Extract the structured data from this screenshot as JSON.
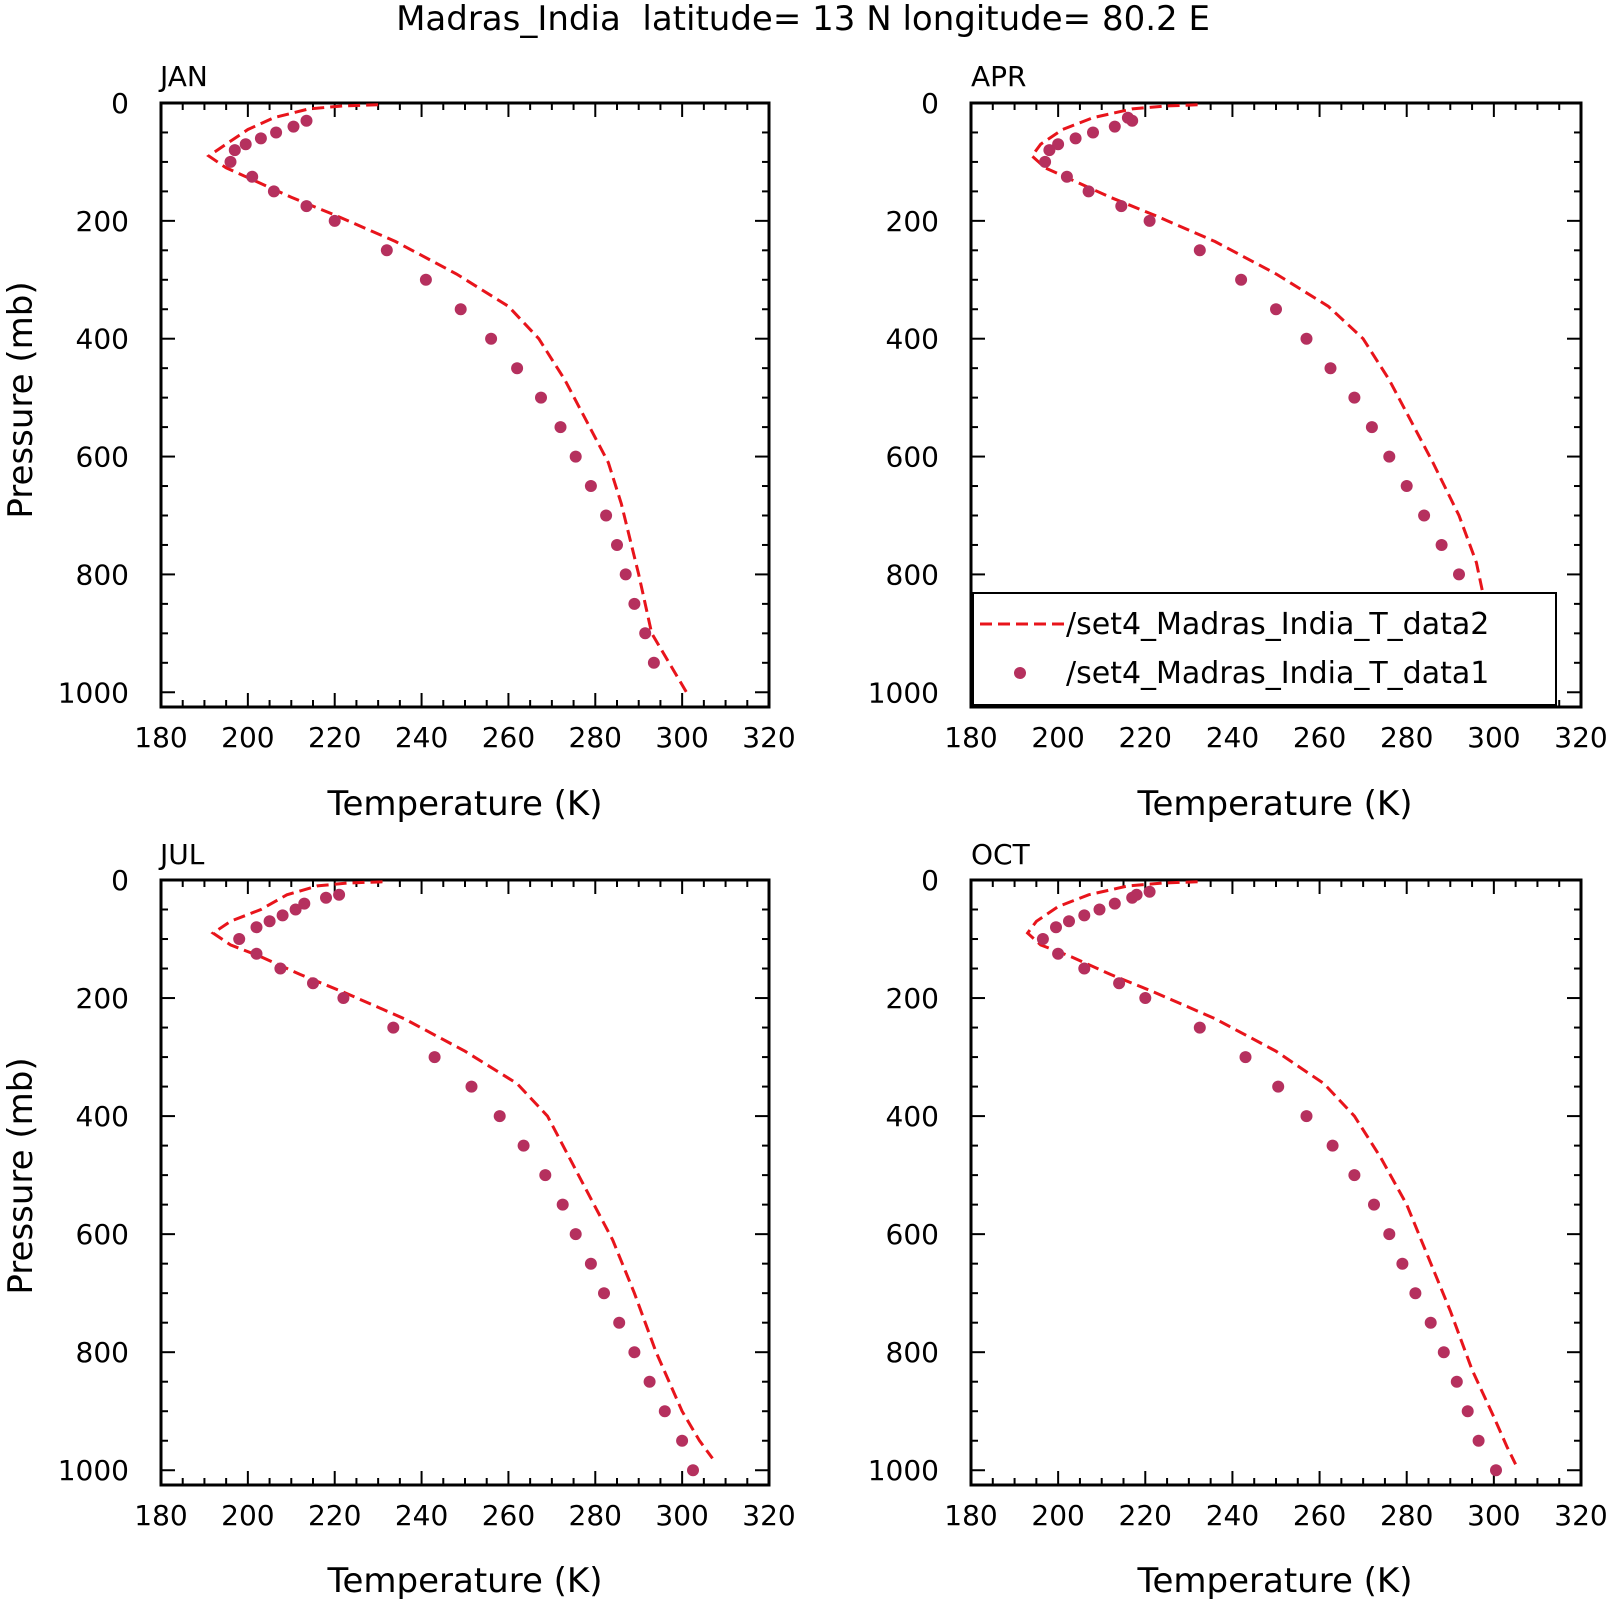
{
  "figure": {
    "title": "Madras_India  latitude= 13 N longitude= 80.2 E"
  },
  "colors": {
    "model_line": "#e8141b",
    "obs_marker": "#b5305e",
    "axes": "#000000"
  },
  "chart_data": [
    {
      "type": "line",
      "panel_label": "JAN",
      "xlabel": "Temperature (K)",
      "ylabel": "Pressure (mb)",
      "xlim": [
        180,
        320
      ],
      "ylim": [
        0,
        1000
      ],
      "y_inverted": true,
      "xticks": [
        180,
        200,
        220,
        240,
        260,
        280,
        300,
        320
      ],
      "yticks": [
        0,
        200,
        400,
        600,
        800,
        1000
      ],
      "grid": false,
      "series": [
        {
          "name": "/set4_Madras_India_T_data2",
          "style": "dashed-line",
          "x": [
            230,
            222,
            214,
            206,
            200,
            195,
            191,
            195,
            201,
            210,
            220,
            234,
            248,
            260,
            267,
            273,
            278,
            283,
            286,
            288,
            290,
            293,
            297,
            301
          ],
          "y": [
            3,
            5,
            10,
            25,
            45,
            70,
            90,
            110,
            130,
            160,
            190,
            235,
            290,
            345,
            400,
            470,
            540,
            610,
            680,
            740,
            800,
            900,
            950,
            1000
          ]
        },
        {
          "name": "/set4_Madras_India_T_data1",
          "style": "marker",
          "x": [
            213.5,
            210.5,
            206.5,
            203,
            199.5,
            197,
            196,
            201,
            206,
            213.5,
            220,
            232,
            241,
            249,
            256,
            262,
            267.5,
            272,
            275.5,
            279,
            282.5,
            285,
            287,
            289,
            291.5,
            293.5
          ],
          "y": [
            30,
            40,
            50,
            60,
            70,
            80,
            100,
            125,
            150,
            175,
            200,
            250,
            300,
            350,
            400,
            450,
            500,
            550,
            600,
            650,
            700,
            750,
            800,
            850,
            900,
            950
          ]
        }
      ]
    },
    {
      "type": "line",
      "panel_label": "APR",
      "xlabel": "Temperature (K)",
      "ylabel": "",
      "xlim": [
        180,
        320
      ],
      "ylim": [
        0,
        1000
      ],
      "y_inverted": true,
      "xticks": [
        180,
        200,
        220,
        240,
        260,
        280,
        300,
        320
      ],
      "yticks": [
        0,
        200,
        400,
        600,
        800,
        1000
      ],
      "grid": false,
      "legend_position": "bottom-right",
      "series": [
        {
          "name": "/set4_Madras_India_T_data2",
          "style": "dashed-line",
          "x": [
            232,
            225,
            217,
            208,
            201,
            196,
            194,
            197,
            203,
            212,
            222,
            236,
            250,
            262,
            270,
            276,
            281,
            286,
            292,
            296,
            298,
            300,
            303,
            305
          ],
          "y": [
            3,
            5,
            10,
            25,
            45,
            70,
            90,
            110,
            130,
            160,
            190,
            235,
            290,
            345,
            400,
            470,
            540,
            610,
            700,
            780,
            850,
            900,
            950,
            1000
          ]
        },
        {
          "name": "/set4_Madras_India_T_data1",
          "style": "marker",
          "x": [
            216,
            217,
            213,
            208,
            204,
            200,
            198,
            197,
            202,
            207,
            214.5,
            221,
            232.5,
            242,
            250,
            257,
            262.5,
            268,
            272,
            276,
            280,
            284,
            288,
            292,
            295.5,
            298,
            299,
            305
          ],
          "y": [
            25,
            30,
            40,
            50,
            60,
            70,
            80,
            100,
            125,
            150,
            175,
            200,
            250,
            300,
            350,
            400,
            450,
            500,
            550,
            600,
            650,
            700,
            750,
            800,
            850,
            900,
            950,
            1000
          ]
        }
      ]
    },
    {
      "type": "line",
      "panel_label": "JUL",
      "xlabel": "Temperature (K)",
      "ylabel": "Pressure (mb)",
      "xlim": [
        180,
        320
      ],
      "ylim": [
        0,
        1000
      ],
      "y_inverted": true,
      "xticks": [
        180,
        200,
        220,
        240,
        260,
        280,
        300,
        320
      ],
      "yticks": [
        0,
        200,
        400,
        600,
        800,
        1000
      ],
      "grid": false,
      "series": [
        {
          "name": "/set4_Madras_India_T_data2",
          "style": "dashed-line",
          "x": [
            231,
            223,
            216,
            209,
            203,
            196,
            192,
            196,
            203,
            212,
            222,
            236,
            250,
            262,
            269,
            274,
            279,
            284,
            289,
            294,
            300,
            304,
            307
          ],
          "y": [
            3,
            5,
            10,
            25,
            50,
            70,
            90,
            110,
            130,
            160,
            190,
            235,
            290,
            345,
            400,
            470,
            540,
            610,
            700,
            800,
            900,
            950,
            980
          ]
        },
        {
          "name": "/set4_Madras_India_T_data1",
          "style": "marker",
          "x": [
            221,
            218,
            213,
            211,
            208,
            205,
            202,
            198,
            202,
            207.5,
            215,
            222,
            233.5,
            243,
            251.5,
            258,
            263.5,
            268.5,
            272.5,
            275.5,
            279,
            282,
            285.5,
            289,
            292.5,
            296,
            300,
            302.5
          ],
          "y": [
            25,
            30,
            40,
            50,
            60,
            70,
            80,
            100,
            125,
            150,
            175,
            200,
            250,
            300,
            350,
            400,
            450,
            500,
            550,
            600,
            650,
            700,
            750,
            800,
            850,
            900,
            950,
            1000
          ]
        }
      ]
    },
    {
      "type": "line",
      "panel_label": "OCT",
      "xlabel": "Temperature (K)",
      "ylabel": "",
      "xlim": [
        180,
        320
      ],
      "ylim": [
        0,
        1000
      ],
      "y_inverted": true,
      "xticks": [
        180,
        200,
        220,
        240,
        260,
        280,
        300,
        320
      ],
      "yticks": [
        0,
        200,
        400,
        600,
        800,
        1000
      ],
      "grid": false,
      "series": [
        {
          "name": "/set4_Madras_India_T_data2",
          "style": "dashed-line",
          "x": [
            232,
            224,
            216,
            207,
            200,
            195,
            193,
            196,
            203,
            212,
            222,
            236,
            250,
            261,
            268,
            274,
            280,
            285,
            290,
            295,
            300,
            303,
            305
          ],
          "y": [
            3,
            5,
            10,
            25,
            45,
            70,
            90,
            110,
            130,
            160,
            190,
            235,
            290,
            345,
            400,
            470,
            550,
            640,
            730,
            830,
            910,
            960,
            990
          ]
        },
        {
          "name": "/set4_Madras_India_T_data1",
          "style": "marker",
          "x": [
            221,
            218,
            217,
            213,
            209.5,
            206,
            202.5,
            199.5,
            196.5,
            200,
            206,
            214,
            220,
            232.5,
            243,
            250.5,
            257,
            263,
            268,
            272.5,
            276,
            279,
            282,
            285.5,
            288.5,
            291.5,
            294,
            296.5,
            300.5
          ],
          "y": [
            20,
            25,
            30,
            40,
            50,
            60,
            70,
            80,
            100,
            125,
            150,
            175,
            200,
            250,
            300,
            350,
            400,
            450,
            500,
            550,
            600,
            650,
            700,
            750,
            800,
            850,
            900,
            950,
            1000
          ]
        }
      ]
    }
  ]
}
